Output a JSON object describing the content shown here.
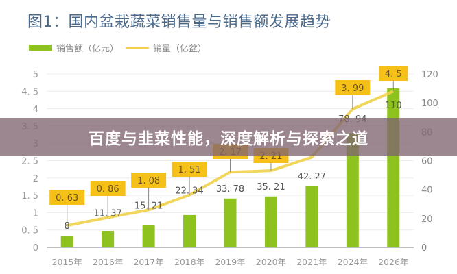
{
  "title": "图1：国内盆栽蔬菜销售量与销售额发展趋势",
  "legend": {
    "bar_label": "销售额（亿元）",
    "line_label": "销量（亿盆）"
  },
  "banner": {
    "text": "百度与韭菜性能，深度解析与探索之道"
  },
  "colors": {
    "bar": "#8dc21f",
    "line": "#f0d24a",
    "label_box": "#f5c018",
    "title": "#4a6a8c",
    "axis_text": "#9a9a9a"
  },
  "chart_data": {
    "type": "bar+line",
    "title": "图1：国内盆栽蔬菜销售量与销售额发展趋势",
    "categories": [
      "2015年",
      "2016年",
      "2017年",
      "2018年",
      "2019年",
      "2020年",
      "2021年",
      "2024年",
      "2026年"
    ],
    "series": [
      {
        "name": "销售额（亿元）",
        "type": "bar",
        "axis": "right",
        "values": [
          8,
          11.37,
          15.21,
          22.34,
          33.78,
          35.21,
          42.27,
          78.94,
          110
        ]
      },
      {
        "name": "销量（亿盆）",
        "type": "line",
        "axis": "left",
        "values": [
          0.63,
          0.86,
          1.08,
          1.51,
          2.17,
          2.21,
          null,
          3.99,
          4.5
        ]
      }
    ],
    "left_axis": {
      "ticks": [
        "0",
        "0.5",
        "1",
        "1.5",
        "2",
        "2.5",
        "3",
        "3.5",
        "4",
        "4.5",
        "5"
      ],
      "range": [
        0,
        5
      ]
    },
    "right_axis": {
      "ticks": [
        "0",
        "20",
        "40",
        "60",
        "80",
        "100",
        "120"
      ],
      "range": [
        0,
        120
      ]
    },
    "grid": true,
    "legend_position": "top-left"
  }
}
